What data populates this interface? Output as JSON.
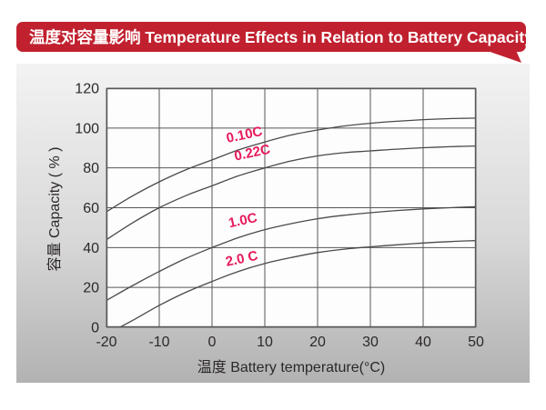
{
  "title": {
    "text": "温度对容量影响 Temperature Effects in Relation to Battery Capacity"
  },
  "colors": {
    "banner_red": "#c1212f",
    "label_pink": "#e8195b",
    "grid": "#565759",
    "curve": "#4a4a4c",
    "plot_bg": "#fdfdfd",
    "panel_top": "#f3f3f3",
    "panel_bottom": "#b2b2b2",
    "text_dark": "#2c2829"
  },
  "chart_data": {
    "type": "line",
    "title": "温度对容量影响 Temperature Effects in Relation to Battery Capacity",
    "xlabel": "温度  Battery temperature(°C)",
    "ylabel": "容量 Capacity ( % )",
    "xlim": [
      -20,
      50
    ],
    "ylim": [
      0,
      120
    ],
    "x_ticks": [
      -20,
      -10,
      0,
      10,
      20,
      30,
      40,
      50
    ],
    "y_ticks": [
      0,
      20,
      40,
      60,
      80,
      100,
      120
    ],
    "grid": true,
    "legend_position": "inline-curve-labels",
    "series": [
      {
        "name": "0.10C",
        "label_pos": {
          "x": 6.3,
          "y": 94.5,
          "angle": -12
        },
        "points": [
          [
            -20,
            58
          ],
          [
            -15,
            66
          ],
          [
            -10,
            73
          ],
          [
            -5,
            79
          ],
          [
            0,
            84
          ],
          [
            5,
            89
          ],
          [
            10,
            93
          ],
          [
            15,
            96.5
          ],
          [
            20,
            99
          ],
          [
            25,
            101
          ],
          [
            30,
            102.4
          ],
          [
            35,
            103.4
          ],
          [
            40,
            104.2
          ],
          [
            45,
            104.7
          ],
          [
            50,
            105
          ]
        ]
      },
      {
        "name": "0.22C",
        "label_pos": {
          "x": 7.8,
          "y": 85.5,
          "angle": -12
        },
        "points": [
          [
            -20,
            44
          ],
          [
            -15,
            52.5
          ],
          [
            -10,
            60
          ],
          [
            -5,
            66
          ],
          [
            0,
            71
          ],
          [
            5,
            76
          ],
          [
            10,
            80
          ],
          [
            15,
            83.5
          ],
          [
            20,
            86
          ],
          [
            25,
            87.6
          ],
          [
            30,
            88.5
          ],
          [
            35,
            89.4
          ],
          [
            40,
            90.1
          ],
          [
            45,
            90.6
          ],
          [
            50,
            91
          ]
        ]
      },
      {
        "name": "1.0C",
        "label_pos": {
          "x": 6,
          "y": 51.5,
          "angle": -12
        },
        "points": [
          [
            -20,
            13.5
          ],
          [
            -15,
            21
          ],
          [
            -10,
            28
          ],
          [
            -5,
            34.5
          ],
          [
            0,
            40
          ],
          [
            5,
            45
          ],
          [
            10,
            49
          ],
          [
            15,
            52
          ],
          [
            20,
            54.5
          ],
          [
            25,
            56.2
          ],
          [
            30,
            57.5
          ],
          [
            35,
            58.6
          ],
          [
            40,
            59.4
          ],
          [
            45,
            60
          ],
          [
            50,
            60.5
          ]
        ]
      },
      {
        "name": "2.0 C",
        "label_pos": {
          "x": 5.8,
          "y": 32.3,
          "angle": -12
        },
        "points": [
          [
            -17.5,
            0
          ],
          [
            -15,
            3.5
          ],
          [
            -10,
            11
          ],
          [
            -5,
            17.5
          ],
          [
            0,
            23
          ],
          [
            5,
            28
          ],
          [
            10,
            32
          ],
          [
            15,
            35
          ],
          [
            20,
            37.5
          ],
          [
            25,
            39.2
          ],
          [
            30,
            40.4
          ],
          [
            35,
            41.4
          ],
          [
            40,
            42.3
          ],
          [
            45,
            43
          ],
          [
            50,
            43.5
          ]
        ]
      }
    ]
  }
}
